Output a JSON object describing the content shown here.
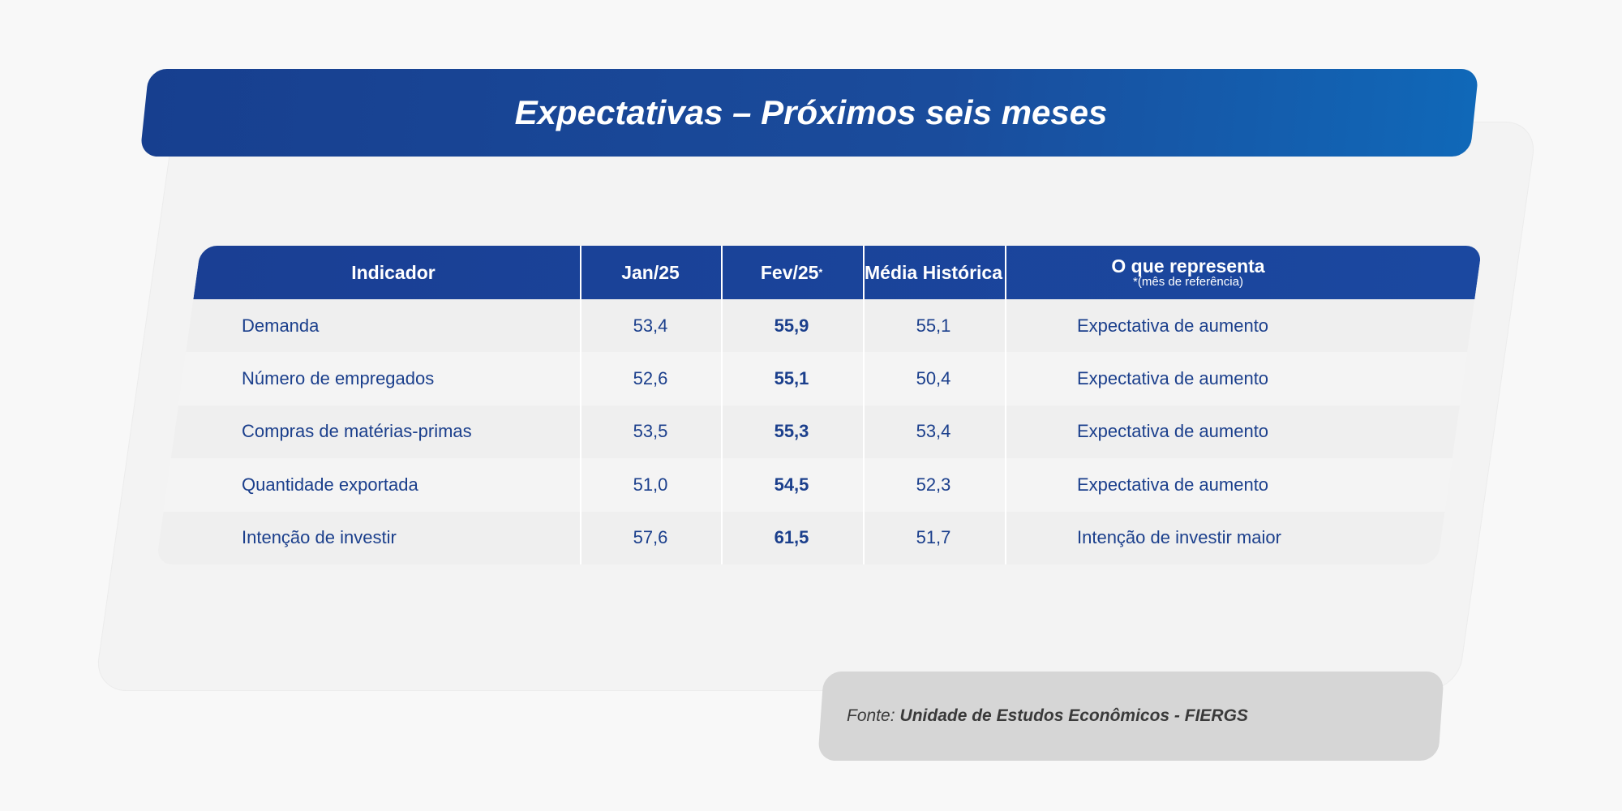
{
  "title": "Expectativas – Próximos seis meses",
  "table": {
    "headers": {
      "indicador": "Indicador",
      "jan": "Jan/25",
      "fev": "Fev/25",
      "fev_marker": "*",
      "media": "Média Histórica",
      "representa": "O que representa",
      "representa_note": "*(mês de referência)"
    },
    "rows": [
      {
        "indicador": "Demanda",
        "jan": "53,4",
        "fev": "55,9",
        "media": "55,1",
        "representa": "Expectativa de aumento"
      },
      {
        "indicador": "Número de empregados",
        "jan": "52,6",
        "fev": "55,1",
        "media": "50,4",
        "representa": "Expectativa de aumento"
      },
      {
        "indicador": "Compras de matérias-primas",
        "jan": "53,5",
        "fev": "55,3",
        "media": "53,4",
        "representa": "Expectativa de aumento"
      },
      {
        "indicador": "Quantidade exportada",
        "jan": "51,0",
        "fev": "54,5",
        "media": "52,3",
        "representa": "Expectativa de aumento"
      },
      {
        "indicador": "Intenção de investir",
        "jan": "57,6",
        "fev": "61,5",
        "media": "51,7",
        "representa": "Intenção de investir maior"
      }
    ]
  },
  "source": {
    "label": "Fonte:",
    "value": "Unidade de Estudos Econômicos - FIERGS"
  },
  "colors": {
    "primary_blue": "#1b3f8c",
    "banner_blue": "#173f8f",
    "source_bg": "#d6d6d6"
  }
}
